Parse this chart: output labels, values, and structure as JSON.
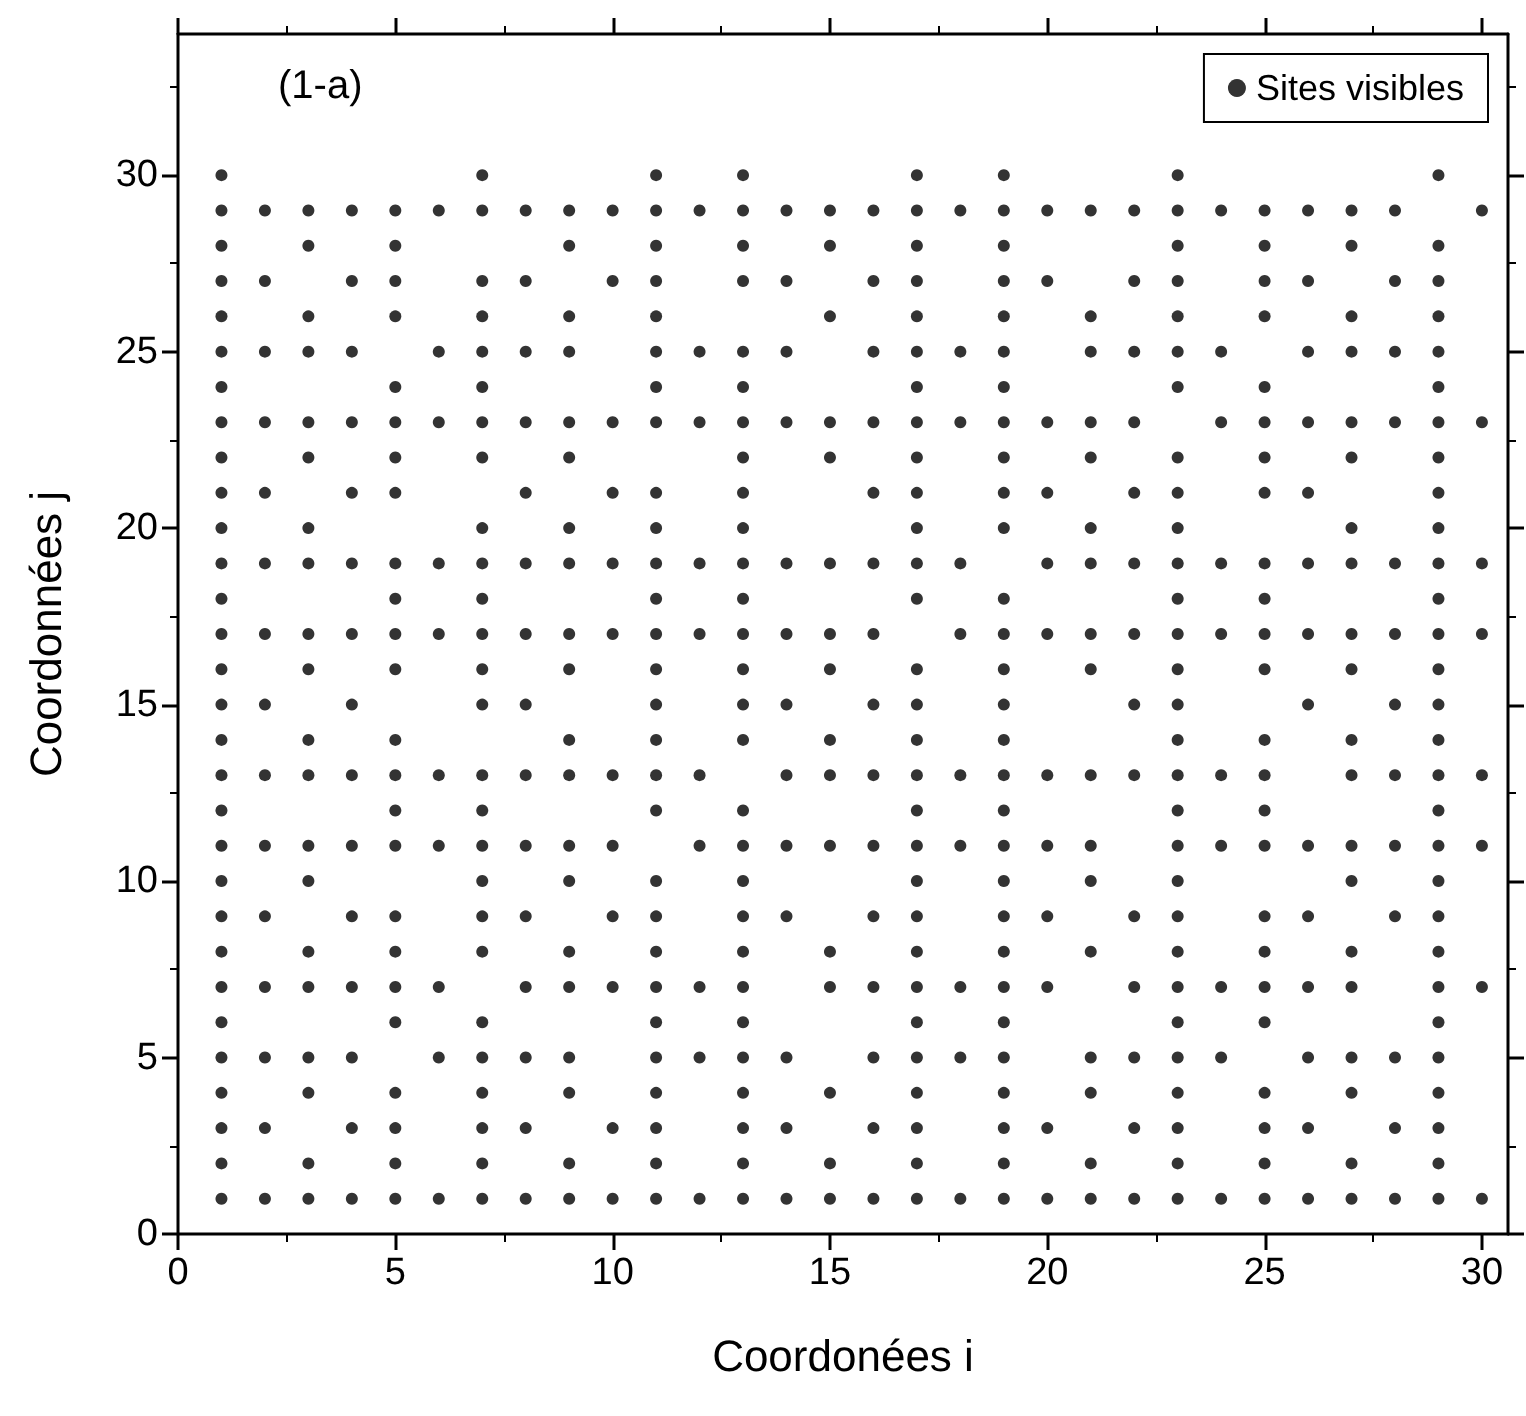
{
  "chart_data": {
    "type": "scatter",
    "xlabel": "Coordonées i",
    "ylabel": "Coordonnées j",
    "annotations": [
      "(1-a)"
    ],
    "xlim": [
      0,
      30.6
    ],
    "ylim": [
      0,
      34
    ],
    "xticks": [
      0,
      5,
      10,
      15,
      20,
      25,
      30
    ],
    "yticks": [
      0,
      5,
      10,
      15,
      20,
      25,
      30
    ],
    "grid": false,
    "legend": "top right",
    "marker": "circle",
    "series": [
      {
        "name": "Sites visibles",
        "color": "#000000",
        "x": [
          1,
          1,
          1,
          1,
          1,
          1,
          1,
          1,
          1,
          1,
          1,
          1,
          1,
          1,
          1,
          1,
          1,
          1,
          1,
          1,
          1,
          1,
          1,
          1,
          1,
          1,
          1,
          1,
          1,
          1,
          2,
          2,
          2,
          2,
          2,
          2,
          2,
          2,
          2,
          2,
          2,
          2,
          2,
          2,
          2,
          3,
          3,
          3,
          3,
          3,
          3,
          3,
          3,
          3,
          3,
          3,
          3,
          3,
          3,
          3,
          3,
          3,
          3,
          3,
          3,
          4,
          4,
          4,
          4,
          4,
          4,
          4,
          4,
          4,
          4,
          4,
          4,
          4,
          4,
          4,
          5,
          5,
          5,
          5,
          5,
          5,
          5,
          5,
          5,
          5,
          5,
          5,
          5,
          5,
          5,
          5,
          5,
          5,
          5,
          5,
          5,
          5,
          5,
          5,
          6,
          6,
          6,
          6,
          6,
          6,
          6,
          6,
          6,
          6,
          7,
          7,
          7,
          7,
          7,
          7,
          7,
          7,
          7,
          7,
          7,
          7,
          7,
          7,
          7,
          7,
          7,
          7,
          7,
          7,
          7,
          7,
          7,
          7,
          7,
          7,
          8,
          8,
          8,
          8,
          8,
          8,
          8,
          8,
          8,
          8,
          8,
          8,
          8,
          8,
          8,
          9,
          9,
          9,
          9,
          9,
          9,
          9,
          9,
          9,
          9,
          9,
          9,
          9,
          9,
          9,
          9,
          9,
          9,
          9,
          9,
          10,
          10,
          10,
          10,
          10,
          10,
          10,
          10,
          10,
          10,
          10,
          10,
          11,
          11,
          11,
          11,
          11,
          11,
          11,
          11,
          11,
          11,
          11,
          11,
          11,
          11,
          11,
          11,
          11,
          11,
          11,
          11,
          11,
          11,
          11,
          11,
          11,
          11,
          11,
          11,
          12,
          12,
          12,
          12,
          12,
          12,
          12,
          12,
          12,
          12,
          13,
          13,
          13,
          13,
          13,
          13,
          13,
          13,
          13,
          13,
          13,
          13,
          13,
          13,
          13,
          13,
          13,
          13,
          13,
          13,
          13,
          13,
          13,
          13,
          13,
          13,
          13,
          13,
          14,
          14,
          14,
          14,
          14,
          14,
          14,
          14,
          14,
          14,
          14,
          14,
          14,
          15,
          15,
          15,
          15,
          15,
          15,
          15,
          15,
          15,
          15,
          15,
          15,
          15,
          15,
          15,
          15,
          16,
          16,
          16,
          16,
          16,
          16,
          16,
          16,
          16,
          16,
          16,
          16,
          16,
          16,
          16,
          17,
          17,
          17,
          17,
          17,
          17,
          17,
          17,
          17,
          17,
          17,
          17,
          17,
          17,
          17,
          17,
          17,
          17,
          17,
          17,
          17,
          17,
          17,
          17,
          17,
          17,
          17,
          17,
          17,
          18,
          18,
          18,
          18,
          18,
          18,
          18,
          18,
          18,
          18,
          19,
          19,
          19,
          19,
          19,
          19,
          19,
          19,
          19,
          19,
          19,
          19,
          19,
          19,
          19,
          19,
          19,
          19,
          19,
          19,
          19,
          19,
          19,
          19,
          19,
          19,
          19,
          19,
          19,
          20,
          20,
          20,
          20,
          20,
          20,
          20,
          20,
          20,
          20,
          20,
          20,
          21,
          21,
          21,
          21,
          21,
          21,
          21,
          21,
          21,
          21,
          21,
          21,
          21,
          21,
          21,
          21,
          21,
          22,
          22,
          22,
          22,
          22,
          22,
          22,
          22,
          22,
          22,
          22,
          22,
          22,
          22,
          23,
          23,
          23,
          23,
          23,
          23,
          23,
          23,
          23,
          23,
          23,
          23,
          23,
          23,
          23,
          23,
          23,
          23,
          23,
          23,
          23,
          23,
          23,
          23,
          23,
          23,
          23,
          23,
          23,
          24,
          24,
          24,
          24,
          24,
          24,
          24,
          24,
          24,
          24,
          25,
          25,
          25,
          25,
          25,
          25,
          25,
          25,
          25,
          25,
          25,
          25,
          25,
          25,
          25,
          25,
          25,
          25,
          25,
          25,
          25,
          25,
          25,
          25,
          26,
          26,
          26,
          26,
          26,
          26,
          26,
          26,
          26,
          26,
          26,
          26,
          26,
          26,
          27,
          27,
          27,
          27,
          27,
          27,
          27,
          27,
          27,
          27,
          27,
          27,
          27,
          27,
          27,
          27,
          27,
          27,
          27,
          27,
          28,
          28,
          28,
          28,
          28,
          28,
          28,
          28,
          28,
          28,
          28,
          28,
          28,
          29,
          29,
          29,
          29,
          29,
          29,
          29,
          29,
          29,
          29,
          29,
          29,
          29,
          29,
          29,
          29,
          29,
          29,
          29,
          29,
          29,
          29,
          29,
          29,
          29,
          29,
          29,
          29,
          29,
          30,
          30,
          30,
          30,
          30,
          30,
          30,
          30
        ],
        "values": [
          1,
          2,
          3,
          4,
          5,
          6,
          7,
          8,
          9,
          10,
          11,
          12,
          13,
          14,
          15,
          16,
          17,
          18,
          19,
          20,
          21,
          22,
          23,
          24,
          25,
          26,
          27,
          28,
          29,
          30,
          1,
          3,
          5,
          7,
          9,
          11,
          13,
          15,
          17,
          19,
          21,
          23,
          25,
          27,
          29,
          1,
          2,
          4,
          5,
          7,
          8,
          10,
          11,
          13,
          14,
          16,
          17,
          19,
          20,
          22,
          23,
          25,
          26,
          28,
          29,
          1,
          3,
          5,
          7,
          9,
          11,
          13,
          15,
          17,
          19,
          21,
          23,
          25,
          27,
          29,
          1,
          2,
          3,
          4,
          6,
          7,
          8,
          9,
          11,
          12,
          13,
          14,
          16,
          17,
          18,
          19,
          21,
          22,
          23,
          24,
          26,
          27,
          28,
          29,
          1,
          5,
          7,
          11,
          13,
          17,
          19,
          23,
          25,
          29,
          1,
          2,
          3,
          4,
          5,
          6,
          8,
          9,
          10,
          11,
          12,
          13,
          15,
          16,
          17,
          18,
          19,
          20,
          22,
          23,
          24,
          25,
          26,
          27,
          29,
          30,
          1,
          3,
          5,
          7,
          9,
          11,
          13,
          15,
          17,
          19,
          21,
          23,
          25,
          27,
          29,
          1,
          2,
          4,
          5,
          7,
          8,
          10,
          11,
          13,
          14,
          16,
          17,
          19,
          20,
          22,
          23,
          25,
          26,
          28,
          29,
          1,
          3,
          7,
          9,
          11,
          13,
          17,
          19,
          21,
          23,
          27,
          29,
          1,
          2,
          3,
          4,
          5,
          6,
          7,
          8,
          9,
          10,
          12,
          13,
          14,
          15,
          16,
          17,
          18,
          19,
          20,
          21,
          23,
          24,
          25,
          26,
          27,
          28,
          29,
          30,
          1,
          5,
          7,
          11,
          13,
          17,
          19,
          23,
          25,
          29,
          1,
          2,
          3,
          4,
          5,
          6,
          7,
          8,
          9,
          10,
          11,
          12,
          14,
          15,
          16,
          17,
          18,
          19,
          20,
          21,
          22,
          23,
          24,
          25,
          27,
          28,
          29,
          30,
          1,
          3,
          5,
          9,
          11,
          13,
          15,
          17,
          19,
          23,
          25,
          27,
          29,
          1,
          2,
          4,
          7,
          8,
          11,
          13,
          14,
          16,
          17,
          19,
          22,
          23,
          26,
          28,
          29,
          1,
          3,
          5,
          7,
          9,
          11,
          13,
          15,
          17,
          19,
          21,
          23,
          25,
          27,
          29,
          1,
          2,
          3,
          4,
          5,
          6,
          7,
          8,
          9,
          10,
          11,
          12,
          13,
          14,
          15,
          16,
          18,
          19,
          20,
          21,
          22,
          23,
          24,
          25,
          26,
          27,
          28,
          29,
          30,
          1,
          5,
          7,
          11,
          13,
          17,
          19,
          23,
          25,
          29,
          1,
          2,
          3,
          4,
          5,
          6,
          7,
          8,
          9,
          10,
          11,
          12,
          13,
          14,
          15,
          16,
          17,
          18,
          20,
          21,
          22,
          23,
          24,
          25,
          26,
          27,
          28,
          29,
          30,
          1,
          3,
          7,
          9,
          11,
          13,
          17,
          19,
          21,
          23,
          27,
          29,
          1,
          2,
          4,
          5,
          8,
          10,
          11,
          13,
          16,
          17,
          19,
          20,
          22,
          23,
          25,
          26,
          29,
          1,
          3,
          5,
          7,
          9,
          13,
          15,
          17,
          19,
          21,
          23,
          25,
          27,
          29,
          1,
          2,
          3,
          4,
          5,
          6,
          7,
          8,
          9,
          10,
          11,
          12,
          13,
          14,
          15,
          16,
          17,
          18,
          19,
          20,
          21,
          22,
          24,
          25,
          26,
          27,
          28,
          29,
          30,
          1,
          5,
          7,
          11,
          13,
          17,
          19,
          23,
          25,
          29,
          1,
          2,
          3,
          4,
          6,
          7,
          8,
          9,
          11,
          12,
          13,
          14,
          16,
          17,
          18,
          19,
          21,
          22,
          23,
          24,
          26,
          27,
          28,
          29,
          1,
          3,
          5,
          7,
          9,
          11,
          15,
          17,
          19,
          21,
          23,
          25,
          27,
          29,
          1,
          2,
          4,
          5,
          7,
          8,
          10,
          11,
          13,
          14,
          16,
          17,
          19,
          20,
          22,
          23,
          25,
          26,
          28,
          29,
          1,
          3,
          5,
          9,
          11,
          13,
          15,
          17,
          19,
          23,
          25,
          27,
          29,
          1,
          2,
          3,
          4,
          5,
          6,
          7,
          8,
          9,
          10,
          11,
          12,
          13,
          14,
          15,
          16,
          17,
          18,
          19,
          20,
          21,
          22,
          23,
          24,
          25,
          26,
          27,
          28,
          30,
          1,
          7,
          11,
          13,
          17,
          19,
          23,
          29
        ]
      }
    ]
  }
}
